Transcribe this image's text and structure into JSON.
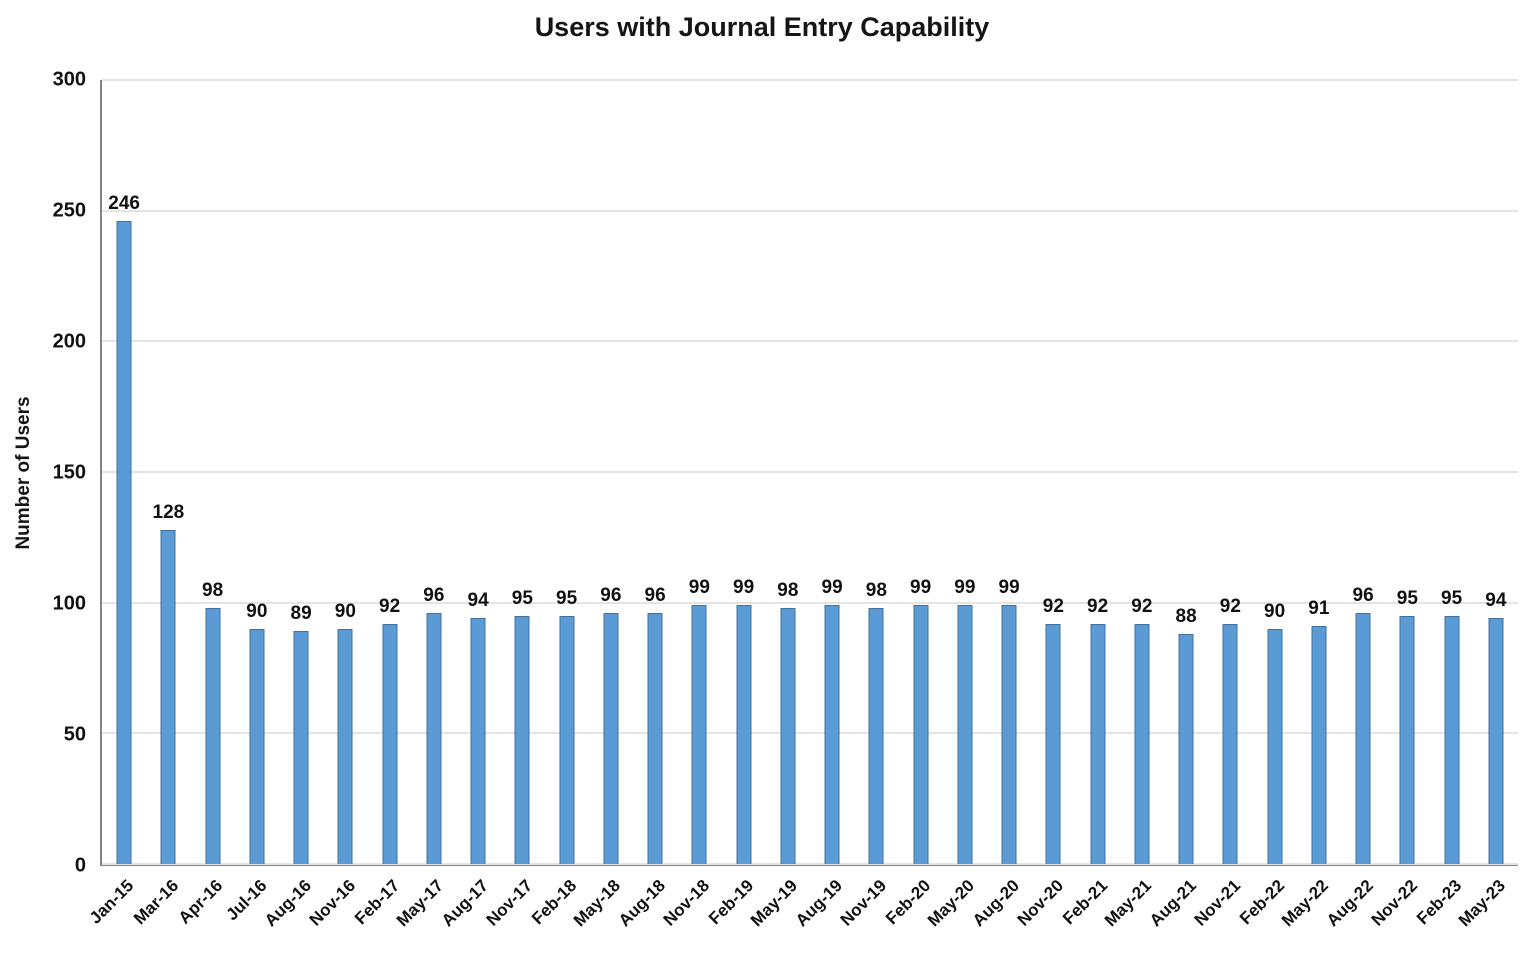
{
  "chart_data": {
    "type": "bar",
    "title": "Users with Journal Entry Capability",
    "xlabel": "",
    "ylabel": "Number of Users",
    "ylim": [
      0,
      300
    ],
    "yticks": [
      0,
      50,
      100,
      150,
      200,
      250,
      300
    ],
    "grid": true,
    "legend": false,
    "bar_color": "#5b9bd5",
    "bar_border_color": "#41719c",
    "data_labels": true,
    "categories": [
      "Jan-15",
      "Mar-16",
      "Apr-16",
      "Jul-16",
      "Aug-16",
      "Nov-16",
      "Feb-17",
      "May-17",
      "Aug-17",
      "Nov-17",
      "Feb-18",
      "May-18",
      "Aug-18",
      "Nov-18",
      "Feb-19",
      "May-19",
      "Aug-19",
      "Nov-19",
      "Feb-20",
      "May-20",
      "Aug-20",
      "Nov-20",
      "Feb-21",
      "May-21",
      "Aug-21",
      "Nov-21",
      "Feb-22",
      "May-22",
      "Aug-22",
      "Nov-22",
      "Feb-23",
      "May-23"
    ],
    "values": [
      246,
      128,
      98,
      90,
      89,
      90,
      92,
      96,
      94,
      95,
      95,
      96,
      96,
      99,
      99,
      98,
      99,
      98,
      99,
      99,
      99,
      92,
      92,
      92,
      88,
      92,
      90,
      91,
      96,
      95,
      95,
      94
    ]
  }
}
